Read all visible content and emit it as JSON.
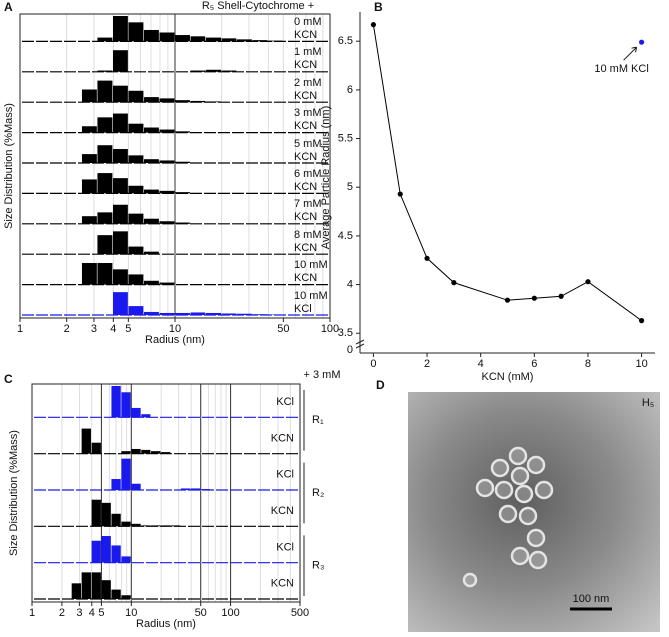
{
  "chart_data": [
    {
      "type": "histogram",
      "panel": "A",
      "title": "R₅ Shell-Cytochrome +",
      "x_label": "Radius (nm)",
      "y_label": "Size Distribution  (%Mass)",
      "log_x": true,
      "grid": true,
      "xlim": [
        1,
        100
      ],
      "xticks": [
        1,
        2,
        3,
        4,
        5,
        10,
        50,
        100
      ],
      "ylim": [
        0,
        100
      ],
      "reference_lines": [
        10
      ],
      "bins": [
        2.51,
        3.16,
        3.98,
        5.01,
        6.31,
        7.94,
        10,
        12.6,
        15.8,
        20,
        25.1,
        31.6,
        39.8,
        50.1
      ],
      "series": [
        {
          "name": "0 mM KCN",
          "color": "#000000",
          "values": [
            0,
            15,
            100,
            75,
            45,
            35,
            25,
            20,
            15,
            12,
            8,
            5,
            3
          ]
        },
        {
          "name": "1 mM KCN",
          "color": "#000000",
          "values": [
            0,
            5,
            85,
            0,
            0,
            0,
            0,
            5,
            8,
            5,
            0,
            0,
            0
          ]
        },
        {
          "name": "2 mM KCN",
          "color": "#000000",
          "values": [
            50,
            85,
            65,
            45,
            20,
            15,
            8,
            5,
            3,
            0,
            0,
            0,
            0
          ]
        },
        {
          "name": "3 mM KCN",
          "color": "#000000",
          "values": [
            25,
            60,
            75,
            35,
            20,
            12,
            5,
            0,
            0,
            0,
            0,
            0,
            0
          ]
        },
        {
          "name": "5 mM KCN",
          "color": "#000000",
          "values": [
            35,
            70,
            55,
            30,
            15,
            10,
            5,
            0,
            0,
            0,
            0,
            0,
            0
          ]
        },
        {
          "name": "6 mM KCN",
          "color": "#000000",
          "values": [
            55,
            80,
            60,
            30,
            15,
            10,
            5,
            0,
            0,
            0,
            0,
            0,
            0
          ]
        },
        {
          "name": "7 mM KCN",
          "color": "#000000",
          "values": [
            30,
            45,
            75,
            40,
            20,
            10,
            5,
            0,
            0,
            0,
            0,
            0,
            0
          ]
        },
        {
          "name": "8 mM KCN",
          "color": "#000000",
          "values": [
            0,
            75,
            90,
            30,
            10,
            0,
            0,
            0,
            0,
            0,
            0,
            0,
            0
          ]
        },
        {
          "name": "10 mM KCN",
          "color": "#000000",
          "values": [
            85,
            85,
            60,
            40,
            15,
            8,
            0,
            0,
            0,
            0,
            0,
            0,
            0
          ]
        },
        {
          "name": "10 mM KCl",
          "color": "#1a1aee",
          "values": [
            0,
            0,
            90,
            35,
            12,
            8,
            8,
            10,
            8,
            6,
            5,
            3,
            2
          ]
        }
      ]
    },
    {
      "type": "line",
      "panel": "B",
      "x_label": "KCN (mM)",
      "y_label": "Average Particle Radius (nm)",
      "xlim": [
        -0.5,
        10.5
      ],
      "xticks": [
        0,
        2,
        4,
        6,
        8,
        10
      ],
      "ylim": [
        3.4,
        6.8
      ],
      "yticks": [
        3.5,
        4.0,
        4.5,
        5.0,
        5.5,
        6.0,
        6.5
      ],
      "y_break_label": "0",
      "x": [
        0,
        1,
        2,
        3,
        5,
        6,
        7,
        8,
        10
      ],
      "color": "#000000",
      "values": [
        6.67,
        4.93,
        4.27,
        4.02,
        3.84,
        3.86,
        3.88,
        4.03,
        3.63
      ],
      "annotations": [
        {
          "text": "10 mM KCl",
          "x": 10,
          "y": 6.49,
          "color": "#1a1aee"
        }
      ]
    },
    {
      "type": "histogram",
      "panel": "C",
      "title": "+ 3 mM",
      "x_label": "Radius (nm)",
      "y_label": "Size Distribution  (%Mass)",
      "log_x": true,
      "grid": true,
      "xlim": [
        1,
        500
      ],
      "xticks": [
        1,
        2,
        3,
        4,
        5,
        10,
        50,
        100,
        500
      ],
      "ylim": [
        0,
        100
      ],
      "reference_lines": [
        5,
        10,
        50,
        100
      ],
      "bins": [
        2.51,
        3.16,
        3.98,
        5.01,
        6.31,
        7.94,
        10,
        12.6,
        15.8,
        20,
        25.1,
        31.6,
        39.8,
        50.1,
        63.1
      ],
      "groups": [
        "R₁",
        "R₂",
        "R₃"
      ],
      "series": [
        {
          "name": "KCl",
          "color": "#1a1aee",
          "values": [
            0,
            0,
            0,
            0,
            100,
            80,
            30,
            10,
            0,
            0,
            0,
            0,
            0,
            0
          ]
        },
        {
          "name": "KCN",
          "color": "#000000",
          "values": [
            0,
            80,
            35,
            0,
            0,
            8,
            15,
            12,
            8,
            5,
            0,
            0,
            0,
            0
          ]
        },
        {
          "name": "KCl",
          "color": "#1a1aee",
          "values": [
            0,
            0,
            0,
            0,
            35,
            100,
            20,
            0,
            0,
            0,
            0,
            5,
            5,
            3
          ]
        },
        {
          "name": "KCN",
          "color": "#000000",
          "values": [
            0,
            0,
            85,
            75,
            40,
            15,
            8,
            3,
            3,
            3,
            3,
            0,
            0,
            0
          ]
        },
        {
          "name": "KCl",
          "color": "#1a1aee",
          "values": [
            0,
            0,
            70,
            85,
            55,
            20,
            0,
            0,
            0,
            0,
            0,
            0,
            0,
            0
          ]
        },
        {
          "name": "KCN",
          "color": "#000000",
          "values": [
            50,
            85,
            85,
            60,
            30,
            12,
            0,
            0,
            0,
            0,
            0,
            0,
            0,
            0
          ]
        }
      ]
    }
  ],
  "image": {
    "panel": "D",
    "annotation": "H₅",
    "scale_bar": "100 nm"
  }
}
